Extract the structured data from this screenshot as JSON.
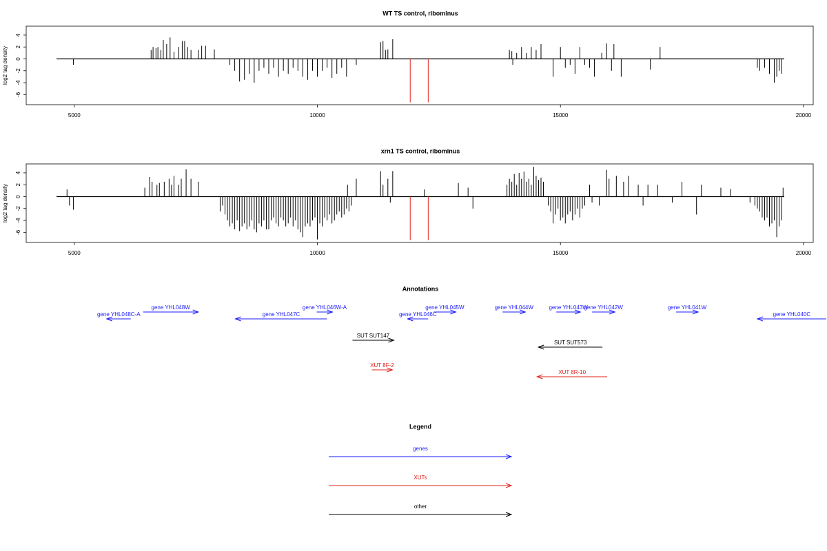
{
  "chart_data": [
    {
      "type": "bar",
      "title": "WT TS control, ribominus",
      "y_label": "log2 tag density",
      "xlim": [
        4010,
        20200
      ],
      "xticks": [
        5000,
        10000,
        15000,
        20000
      ],
      "ylim": [
        -7.7,
        5.5
      ],
      "yticks": [
        -6,
        -4,
        -2,
        0,
        2,
        4
      ],
      "series": [
        {
          "color": "#000000",
          "x": [
            4980,
            6580,
            6620,
            6680,
            6720,
            6780,
            6830,
            6900,
            6970,
            7050,
            7150,
            7220,
            7270,
            7330,
            7400,
            7550,
            7620,
            7700,
            7880,
            8200,
            8300,
            8400,
            8500,
            8600,
            8700,
            8800,
            8900,
            9000,
            9100,
            9200,
            9300,
            9400,
            9500,
            9600,
            9700,
            9800,
            9900,
            10000,
            10100,
            10200,
            10300,
            10400,
            10500,
            10600,
            10800,
            11300,
            11350,
            11400,
            11450,
            11550,
            13950,
            14000,
            14020,
            14100,
            14200,
            14300,
            14400,
            14500,
            14600,
            14850,
            15000,
            15100,
            15200,
            15300,
            15400,
            15500,
            15600,
            15700,
            15850,
            15950,
            16050,
            16100,
            16250,
            16850,
            17050,
            19050,
            19100,
            19200,
            19300,
            19400,
            19450,
            19500,
            19550
          ],
          "values": [
            -1,
            1.5,
            2,
            1.8,
            2,
            1.5,
            3.2,
            2.5,
            3.6,
            1.2,
            2,
            3,
            3,
            2,
            1.5,
            1.5,
            2.2,
            2.2,
            1.6,
            -1,
            -2,
            -3.8,
            -3.5,
            -2.5,
            -4,
            -2,
            -1.5,
            -2.5,
            -1.5,
            -3,
            -2,
            -2.5,
            -1.5,
            -2,
            -3,
            -3.5,
            -2,
            -3,
            -2,
            -1.5,
            -3.2,
            -2.5,
            -1.5,
            -3,
            -1,
            2.8,
            3,
            1.5,
            1.6,
            3.3,
            1.5,
            1.3,
            -1,
            1,
            2,
            1,
            2,
            1.5,
            2.5,
            -3,
            2,
            -1.5,
            -1,
            -2.5,
            2,
            -1,
            -1.5,
            -3,
            1,
            2.6,
            -2,
            2.5,
            -3,
            -1.8,
            2,
            -1.5,
            -2,
            -1.5,
            -2.5,
            -4,
            -3,
            -2,
            -2.5
          ]
        },
        {
          "color": "#e0201b",
          "x": [
            11910,
            12280
          ],
          "values": [
            -7.3,
            -7.3
          ]
        }
      ]
    },
    {
      "type": "bar",
      "title": "xrn1 TS control, ribominus",
      "y_label": "log2 tag density",
      "xlim": [
        4010,
        20200
      ],
      "xticks": [
        5000,
        10000,
        15000,
        20000
      ],
      "ylim": [
        -7.7,
        5.5
      ],
      "yticks": [
        -6,
        -4,
        -2,
        0,
        2,
        4
      ],
      "series": [
        {
          "color": "#000000",
          "x": [
            4850,
            4900,
            4980,
            6450,
            6550,
            6600,
            6700,
            6750,
            6850,
            6950,
            7000,
            7050,
            7150,
            7200,
            7300,
            7400,
            7550,
            8000,
            8100,
            8200,
            8300,
            8400,
            8500,
            8600,
            8700,
            8800,
            8900,
            9000,
            9100,
            9200,
            9300,
            9400,
            9500,
            9600,
            9700,
            9800,
            9900,
            10000,
            10100,
            10200,
            10300,
            10400,
            10500,
            10600,
            10700,
            8050,
            8150,
            8250,
            8350,
            8450,
            8550,
            8650,
            8750,
            8850,
            8950,
            9050,
            9150,
            9250,
            9350,
            9450,
            9550,
            9650,
            9750,
            9850,
            9950,
            10050,
            10150,
            10250,
            10350,
            10450,
            10550,
            10650,
            10620,
            10800,
            11300,
            11350,
            11450,
            11500,
            11550,
            12200,
            12900,
            13100,
            13200,
            13900,
            13950,
            14000,
            14050,
            14100,
            14150,
            14200,
            14250,
            14300,
            14350,
            14400,
            14450,
            14500,
            14550,
            14600,
            14650,
            14750,
            14800,
            14850,
            14900,
            14950,
            15000,
            15050,
            15100,
            15150,
            15200,
            15250,
            15300,
            15350,
            15400,
            15450,
            15500,
            15600,
            15650,
            15800,
            15950,
            16000,
            16150,
            16300,
            16400,
            16600,
            16700,
            16800,
            17000,
            17300,
            17500,
            17800,
            17900,
            18300,
            18500,
            18900,
            19000,
            19050,
            19100,
            19150,
            19200,
            19250,
            19300,
            19350,
            19400,
            19450,
            19500,
            19550,
            19580
          ],
          "values": [
            1.2,
            -1.5,
            -2.2,
            1.5,
            3.3,
            2.5,
            2,
            2.3,
            2.5,
            3,
            2,
            3.5,
            2,
            3,
            4.6,
            3,
            2.5,
            -2.5,
            -3,
            -5,
            -5.5,
            -5.8,
            -4.5,
            -5,
            -5.5,
            -4.5,
            -4,
            -5.5,
            -3.5,
            -5,
            -4,
            -4.5,
            -5,
            -5.5,
            -6.8,
            -4.5,
            -4,
            -7.2,
            -5,
            -4,
            -4.5,
            -3,
            -3.5,
            -2,
            -1.5,
            -1.5,
            -4,
            -4.5,
            -4,
            -5,
            -5.5,
            -4,
            -6,
            -5,
            -5.5,
            -4,
            -4.5,
            -3.5,
            -5,
            -3.5,
            -4,
            -6,
            -5,
            -5,
            -3.5,
            -4.5,
            -3.5,
            -3,
            -4,
            -2.5,
            -3,
            -2.5,
            2,
            3,
            4.3,
            2,
            3,
            -1,
            4.3,
            1.2,
            2.3,
            1.5,
            -2,
            2,
            3,
            2.5,
            3.8,
            2,
            4,
            3,
            4.2,
            2.5,
            3,
            2,
            5,
            3.5,
            2.8,
            3.2,
            2.5,
            -1.5,
            -2.5,
            -4.5,
            -3,
            -2,
            -4,
            -3.5,
            -4.5,
            -3,
            -2.5,
            -4,
            -3,
            -2,
            -3.5,
            -2,
            -1.5,
            2,
            -1,
            -1.5,
            4.5,
            3,
            3.5,
            2.5,
            3.5,
            2,
            -1.5,
            2,
            2,
            -1,
            2.5,
            -3,
            2,
            1.5,
            1.3,
            -1,
            -1.5,
            -2,
            -2.5,
            -3.5,
            -4,
            -3.5,
            -5,
            -4.5,
            -4,
            -6.8,
            -5,
            -4,
            1.5
          ]
        },
        {
          "color": "#e0201b",
          "x": [
            11910,
            12280
          ],
          "values": [
            -7.3,
            -7.3
          ]
        }
      ]
    }
  ],
  "annotations": {
    "title": "Annotations",
    "items": [
      {
        "label": "gene YHL048C-A",
        "kind": "gene",
        "color": "#1a1aff",
        "start": 6161,
        "end": 5666
      },
      {
        "label": "gene YHL048W",
        "kind": "gene",
        "color": "#1a1aff",
        "start": 6416,
        "end": 7550
      },
      {
        "label": "gene YHL047C",
        "kind": "gene",
        "color": "#1a1aff",
        "start": 10198,
        "end": 8314
      },
      {
        "label": "gene YHL046W-A",
        "kind": "gene",
        "color": "#1a1aff",
        "start": 9986,
        "end": 10311
      },
      {
        "label": "gene YHL046C",
        "kind": "gene",
        "color": "#1a1aff",
        "start": 12280,
        "end": 11855
      },
      {
        "label": "gene YHL045W",
        "kind": "gene",
        "color": "#1a1aff",
        "start": 12394,
        "end": 12847
      },
      {
        "label": "gene YHL044W",
        "kind": "gene",
        "color": "#1a1aff",
        "start": 13810,
        "end": 14277
      },
      {
        "label": "gene YHL043W",
        "kind": "gene",
        "color": "#1a1aff",
        "start": 14915,
        "end": 15410
      },
      {
        "label": "gene YHL042W",
        "kind": "gene",
        "color": "#1a1aff",
        "start": 15651,
        "end": 16119
      },
      {
        "label": "gene YHL041W",
        "kind": "gene",
        "color": "#1a1aff",
        "start": 17379,
        "end": 17832
      },
      {
        "label": "gene YHL040C",
        "kind": "gene",
        "color": "#1a1aff",
        "start": 20467,
        "end": 19051
      },
      {
        "label": "SUT SUT147",
        "kind": "other",
        "color": "#000000",
        "start": 10722,
        "end": 11572
      },
      {
        "label": "SUT SUT573",
        "kind": "other",
        "color": "#000000",
        "start": 15864,
        "end": 14547
      },
      {
        "label": "XUT 8F-2",
        "kind": "xut",
        "color": "#e0201b",
        "start": 11119,
        "end": 11544
      },
      {
        "label": "XUT 8R-10",
        "kind": "xut",
        "color": "#e0201b",
        "start": 15963,
        "end": 14519
      }
    ]
  },
  "legend": {
    "title": "Legend",
    "entries": [
      {
        "label": "genes",
        "color": "#1a1aff"
      },
      {
        "label": "XUTs",
        "color": "#e0201b"
      },
      {
        "label": "other",
        "color": "#000000"
      }
    ]
  }
}
